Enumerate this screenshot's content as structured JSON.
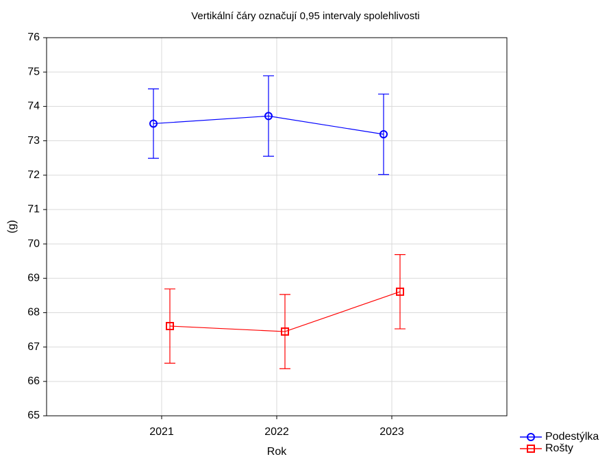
{
  "chart_data": {
    "type": "line",
    "title": "Vertikální čáry označují 0,95 intervaly spolehlivosti",
    "x_label": "Rok",
    "y_label": "(g)",
    "categories": [
      "2021",
      "2022",
      "2023"
    ],
    "series": [
      {
        "name": "Podestýlka",
        "color": "#0000ff",
        "marker": "circle",
        "values": [
          73.5,
          73.72,
          73.19
        ],
        "errors": [
          1.01,
          1.17,
          1.17
        ]
      },
      {
        "name": "Rošty",
        "color": "#ff0000",
        "marker": "square",
        "values": [
          67.61,
          67.45,
          68.61
        ],
        "errors": [
          1.08,
          1.08,
          1.08
        ]
      }
    ],
    "ylim": [
      65,
      76
    ],
    "yticks": [
      65,
      66,
      67,
      68,
      69,
      70,
      71,
      72,
      73,
      74,
      75,
      76
    ],
    "grid": true,
    "legend": "bottom-right"
  }
}
